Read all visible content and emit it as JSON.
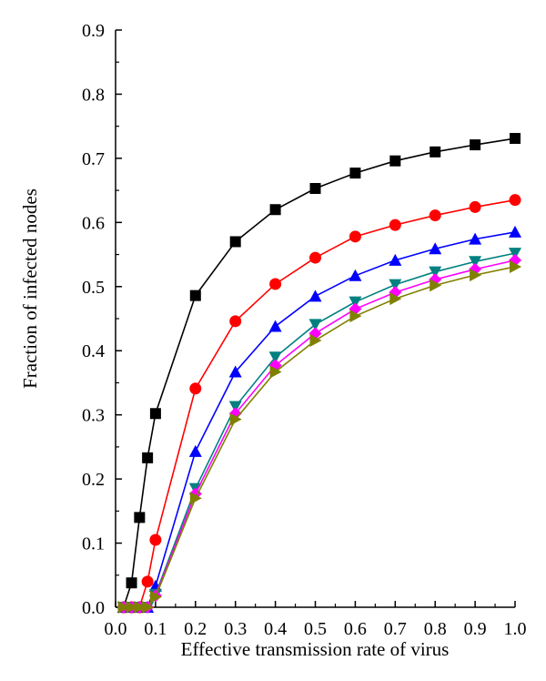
{
  "chart_data": {
    "type": "line",
    "title": "",
    "xlabel": "Effective transmission rate of virus",
    "ylabel": "Fraction of infected nodes",
    "xlim": [
      0.0,
      1.0
    ],
    "ylim": [
      0.0,
      0.9
    ],
    "x_ticks": [
      "0.0",
      "0.1",
      "0.2",
      "0.3",
      "0.4",
      "0.5",
      "0.6",
      "0.7",
      "0.8",
      "0.9",
      "1.0"
    ],
    "y_ticks": [
      "0.0",
      "0.1",
      "0.2",
      "0.3",
      "0.4",
      "0.5",
      "0.6",
      "0.7",
      "0.8",
      "0.9"
    ],
    "grid": false,
    "legend": "none",
    "x": [
      0.02,
      0.04,
      0.06,
      0.08,
      0.1,
      0.2,
      0.3,
      0.4,
      0.5,
      0.6,
      0.7,
      0.8,
      0.9,
      1.0
    ],
    "series": [
      {
        "marker": "square",
        "color": "#000000",
        "values": [
          0.0,
          0.038,
          0.14,
          0.233,
          0.302,
          0.486,
          0.57,
          0.62,
          0.653,
          0.677,
          0.696,
          0.71,
          0.721,
          0.731
        ]
      },
      {
        "marker": "circle",
        "color": "#ff0000",
        "values": [
          0.0,
          0.0,
          0.0,
          0.04,
          0.105,
          0.341,
          0.446,
          0.504,
          0.545,
          0.578,
          0.596,
          0.611,
          0.624,
          0.635
        ]
      },
      {
        "marker": "triangle-up",
        "color": "#0000ff",
        "values": [
          0.0,
          0.0,
          0.0,
          0.0,
          0.033,
          0.243,
          0.367,
          0.438,
          0.485,
          0.517,
          0.541,
          0.559,
          0.574,
          0.585
        ]
      },
      {
        "marker": "triangle-down",
        "color": "#008080",
        "values": [
          0.0,
          0.0,
          0.0,
          0.0,
          0.02,
          0.185,
          0.313,
          0.39,
          0.441,
          0.476,
          0.503,
          0.523,
          0.539,
          0.552
        ]
      },
      {
        "marker": "diamond",
        "color": "#ff00ff",
        "values": [
          0.0,
          0.0,
          0.0,
          0.0,
          0.018,
          0.177,
          0.302,
          0.377,
          0.427,
          0.465,
          0.491,
          0.511,
          0.527,
          0.541
        ]
      },
      {
        "marker": "triangle-right",
        "color": "#808000",
        "values": [
          0.0,
          0.0,
          0.0,
          0.0,
          0.016,
          0.17,
          0.293,
          0.367,
          0.416,
          0.454,
          0.481,
          0.502,
          0.518,
          0.531
        ]
      }
    ]
  }
}
